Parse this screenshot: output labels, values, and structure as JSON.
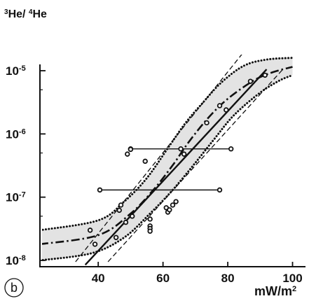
{
  "chart_data": {
    "type": "scatter",
    "panel_label": "b",
    "ylabel": {
      "a": "3",
      "b": "He/ ",
      "c": "4",
      "d": "He"
    },
    "xlabel": {
      "base": "mW/m",
      "sup": "2"
    },
    "xlim": [
      22,
      104
    ],
    "ylim_log10": [
      -8.1,
      -4.9
    ],
    "y_scale": "log",
    "x_ticks": [
      40,
      60,
      80,
      100
    ],
    "y_ticks": [
      {
        "exp": -5,
        "base": "10",
        "sup": "-5"
      },
      {
        "exp": -6,
        "base": "10",
        "sup": "-6"
      },
      {
        "exp": -7,
        "base": "10",
        "sup": "-7"
      },
      {
        "exp": -8,
        "base": "10",
        "sup": "-8"
      }
    ],
    "points": [
      [
        37.5,
        3e-08
      ],
      [
        39,
        1.8e-08
      ],
      [
        45.5,
        2.3e-08
      ],
      [
        46.5,
        6.2e-08
      ],
      [
        47,
        7.5e-08
      ],
      [
        48.5,
        4e-08
      ],
      [
        49,
        4.8e-07
      ],
      [
        50,
        5.7e-07
      ],
      [
        50.5,
        5e-08
      ],
      [
        54.5,
        3.7e-07
      ],
      [
        56,
        4.5e-08
      ],
      [
        56,
        3.5e-08
      ],
      [
        56,
        3.2e-08
      ],
      [
        56,
        2.9e-08
      ],
      [
        61,
        6.8e-08
      ],
      [
        61.5,
        5.8e-08
      ],
      [
        62,
        6.3e-08
      ],
      [
        63,
        7.5e-08
      ],
      [
        64,
        8.5e-08
      ],
      [
        65.5,
        5.8e-07
      ],
      [
        66.5,
        4.8e-07
      ],
      [
        73.5,
        1.5e-06
      ],
      [
        77.5,
        2.8e-06
      ],
      [
        79.5,
        2.4e-06
      ],
      [
        87,
        6.8e-06
      ],
      [
        91.5,
        8.5e-06
      ]
    ],
    "error_bars": [
      {
        "y": 5.8e-07,
        "x_min": 50,
        "x_max": 81
      },
      {
        "y": 1.3e-07,
        "x_min": 40.5,
        "x_max": 77.5
      }
    ],
    "curves": {
      "central_dashdot": [
        [
          22,
          1.8e-08
        ],
        [
          40,
          2.5e-08
        ],
        [
          50,
          5.5e-08
        ],
        [
          57,
          1.3e-07
        ],
        [
          63,
          3.2e-07
        ],
        [
          68,
          7.5e-07
        ],
        [
          74,
          1.8e-06
        ],
        [
          80,
          3.6e-06
        ],
        [
          88,
          7e-06
        ],
        [
          94,
          9.5e-06
        ],
        [
          100,
          1.15e-05
        ]
      ],
      "band_upper": [
        [
          22,
          3e-08
        ],
        [
          40,
          4.3e-08
        ],
        [
          48,
          8.5e-08
        ],
        [
          55,
          2e-07
        ],
        [
          62,
          6.5e-07
        ],
        [
          67,
          1.5e-06
        ],
        [
          72,
          3e-06
        ],
        [
          78,
          6.5e-06
        ],
        [
          85,
          1.2e-05
        ],
        [
          92,
          1.5e-05
        ],
        [
          100,
          1.6e-05
        ]
      ],
      "band_lower": [
        [
          22,
          1e-08
        ],
        [
          38,
          1.3e-08
        ],
        [
          48,
          2.3e-08
        ],
        [
          56,
          5.5e-08
        ],
        [
          63,
          1.3e-07
        ],
        [
          70,
          3.5e-07
        ],
        [
          76,
          8.5e-07
        ],
        [
          82,
          2e-06
        ],
        [
          90,
          4.5e-06
        ],
        [
          96,
          7e-06
        ],
        [
          100,
          8.5e-06
        ]
      ],
      "solid_line": [
        [
          36,
          8.5e-09
        ],
        [
          92,
          1.05e-05
        ]
      ],
      "dashed_upper": [
        [
          33,
          9.5e-09
        ],
        [
          85,
          2e-05
        ]
      ],
      "dashed_lower": [
        [
          43,
          9.5e-09
        ],
        [
          97,
          1.05e-05
        ]
      ]
    },
    "colors": {
      "band": "#e3e3e3",
      "ink": "#111111",
      "background": "#ffffff"
    }
  }
}
